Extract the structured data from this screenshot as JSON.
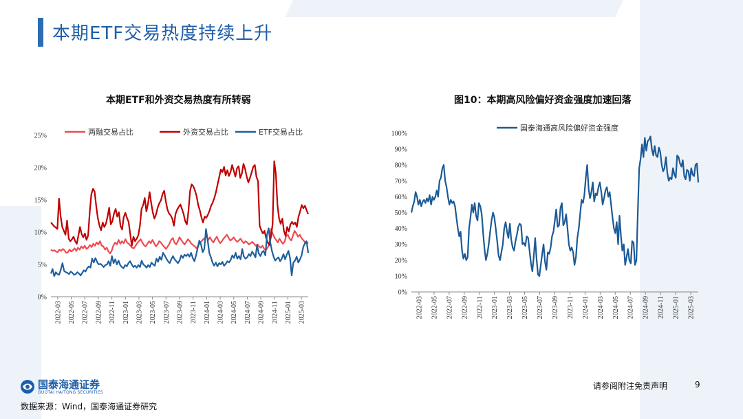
{
  "page": {
    "title": "本期ETF交易热度持续上升",
    "source": "数据来源：Wind，国泰海通证券研究",
    "disclaimer": "请参阅附注免责声明",
    "page_number": "9",
    "logo_cn": "国泰海通证券",
    "logo_en": "GUOTAI HAITONG SECURITIES"
  },
  "colors": {
    "header": "#1f5ea8",
    "series_margin": "#ef4a4f",
    "series_foreign": "#c00000",
    "series_etf": "#1f5f9e",
    "risk_appetite": "#1b5a96",
    "background_shape": "#eef3f9"
  },
  "chart_data": [
    {
      "type": "line",
      "title": "本期ETF和外资交易热度有所转弱",
      "legend_position": "top",
      "grid": false,
      "ylim": [
        0,
        25
      ],
      "y_ticks": [
        "0%",
        "5%",
        "10%",
        "15%",
        "20%",
        "25%"
      ],
      "x_ticks": [
        "2022-03",
        "2022-05",
        "2022-07",
        "2022-09",
        "2022-11",
        "2023-01",
        "2023-03",
        "2023-05",
        "2023-07",
        "2023-09",
        "2023-11",
        "2024-01",
        "2024-03",
        "2024-05",
        "2024-07",
        "2024-09",
        "2024-11",
        "2025-01",
        "2025-03"
      ],
      "series": [
        {
          "name": "两融交易占比",
          "color": "#ef4a4f",
          "values": [
            7.3,
            7.1,
            7.2,
            7.0,
            6.9,
            7.3,
            7.1,
            7.4,
            7.2,
            6.8,
            6.9,
            7.3,
            7.0,
            7.2,
            7.5,
            7.1,
            7.6,
            7.3,
            7.8,
            7.5,
            7.9,
            7.4,
            7.6,
            8.0,
            7.7,
            8.2,
            7.9,
            8.4,
            8.1,
            8.6,
            7.9,
            7.8,
            7.3,
            7.6,
            7.0,
            6.7,
            7.2,
            8.0,
            8.4,
            8.1,
            8.8,
            8.2,
            8.6,
            8.3,
            8.9,
            8.4,
            8.2,
            7.9,
            7.6,
            7.5,
            7.9,
            8.3,
            8.6,
            8.9,
            8.4,
            8.0,
            7.8,
            8.2,
            8.6,
            8.3,
            8.8,
            8.3,
            7.8,
            8.1,
            8.6,
            8.4,
            8.0,
            7.7,
            7.4,
            7.8,
            8.2,
            8.8,
            9.1,
            8.4,
            8.1,
            8.6,
            9.2,
            8.8,
            8.4,
            8.1,
            8.5,
            8.9,
            8.6,
            8.2,
            8.0,
            7.8,
            7.5,
            7.9,
            8.3,
            8.6,
            8.9,
            9.1,
            9.4,
            8.8,
            9.2,
            8.7,
            8.4,
            8.9,
            9.3,
            8.7,
            8.3,
            8.6,
            9.0,
            9.3,
            9.6,
            9.1,
            8.7,
            8.9,
            9.2,
            8.8,
            8.5,
            8.7,
            9.0,
            8.6,
            8.3,
            8.6,
            8.4,
            8.1,
            8.3,
            8.5,
            8.2,
            7.9,
            8.1,
            7.8,
            7.6,
            7.9,
            7.4,
            7.2,
            7.6,
            8.1,
            10.5,
            9.8,
            9.2,
            8.8,
            8.4,
            9.0,
            8.6,
            8.2,
            8.5,
            9.4,
            9.6,
            9.0,
            8.7,
            9.5,
            10.2,
            9.8,
            9.3,
            9.6,
            9.1,
            8.8,
            8.5,
            8.2,
            8.4
          ]
        },
        {
          "name": "外资交易占比",
          "color": "#c00000",
          "values": [
            11.5,
            11.2,
            10.9,
            10.7,
            10.5,
            15.2,
            12.5,
            10.8,
            10.2,
            9.6,
            11.8,
            9.0,
            8.6,
            8.9,
            9.3,
            8.6,
            8.2,
            9.5,
            10.8,
            9.7,
            9.2,
            9.8,
            8.8,
            9.5,
            13.2,
            15.9,
            16.7,
            16.3,
            14.0,
            12.2,
            11.0,
            10.3,
            11.5,
            10.8,
            11.3,
            12.4,
            13.8,
            11.2,
            11.7,
            12.9,
            13.6,
            12.4,
            13.1,
            11.0,
            10.4,
            12.3,
            13.0,
            12.2,
            11.6,
            9.7,
            7.9,
            9.3,
            8.6,
            9.0,
            9.5,
            11.0,
            13.6,
            14.2,
            15.3,
            13.2,
            14.4,
            16.2,
            14.5,
            13.0,
            12.1,
            12.8,
            13.8,
            14.5,
            14.9,
            15.9,
            16.4,
            14.8,
            13.5,
            12.9,
            12.6,
            12.1,
            11.0,
            12.8,
            13.5,
            13.9,
            14.3,
            13.6,
            12.8,
            11.7,
            11.2,
            13.2,
            16.4,
            17.4,
            17.1,
            16.5,
            15.6,
            14.2,
            13.4,
            12.3,
            11.5,
            12.4,
            12.2,
            12.7,
            13.3,
            14.1,
            14.6,
            15.3,
            16.2,
            17.4,
            18.5,
            19.7,
            19.3,
            20.1,
            18.8,
            19.6,
            18.7,
            19.3,
            20.4,
            19.5,
            18.6,
            19.9,
            20.2,
            18.4,
            19.1,
            20.6,
            19.8,
            18.6,
            17.7,
            18.4,
            19.2,
            20.1,
            20.4,
            18.6,
            17.9,
            11.0,
            10.3,
            9.8,
            10.2,
            9.1,
            8.4,
            8.0,
            9.3,
            11.3,
            21.0,
            19.0,
            14.2,
            12.1,
            11.3,
            12.1,
            10.2,
            9.4,
            10.8,
            10.1,
            11.2,
            11.6,
            11.2,
            11.5,
            10.8,
            12.4,
            13.2,
            14.2,
            13.7,
            14.1,
            13.4,
            12.8
          ]
        },
        {
          "name": "ETF交易占比",
          "color": "#1f5f9e",
          "values": [
            3.6,
            4.3,
            3.2,
            3.8,
            3.5,
            3.4,
            4.2,
            5.2,
            4.0,
            3.8,
            3.7,
            3.5,
            3.9,
            3.7,
            3.4,
            3.5,
            3.8,
            3.6,
            3.3,
            3.7,
            4.1,
            3.9,
            4.4,
            4.7,
            4.5,
            5.9,
            5.3,
            6.0,
            5.4,
            5.0,
            5.1,
            4.9,
            4.6,
            4.9,
            5.0,
            5.5,
            4.8,
            6.3,
            5.2,
            5.8,
            5.0,
            5.6,
            4.9,
            4.6,
            4.4,
            4.9,
            4.7,
            5.2,
            5.5,
            5.0,
            4.6,
            4.8,
            4.5,
            4.9,
            4.6,
            5.6,
            5.0,
            4.8,
            4.5,
            4.9,
            4.6,
            5.3,
            5.0,
            4.8,
            5.9,
            5.4,
            6.2,
            5.7,
            6.8,
            6.4,
            5.9,
            5.5,
            5.2,
            5.8,
            6.3,
            5.8,
            5.5,
            5.2,
            5.6,
            6.4,
            6.0,
            6.5,
            6.3,
            6.6,
            6.2,
            6.8,
            6.0,
            5.5,
            6.4,
            7.6,
            8.7,
            8.1,
            6.9,
            7.4,
            10.5,
            8.8,
            6.8,
            6.1,
            5.3,
            4.8,
            5.3,
            4.7,
            5.2,
            5.0,
            5.4,
            4.8,
            5.1,
            5.5,
            5.3,
            5.7,
            6.4,
            6.0,
            6.8,
            5.9,
            6.3,
            5.8,
            7.4,
            6.2,
            5.9,
            6.1,
            6.6,
            6.3,
            7.0,
            6.6,
            6.1,
            8.0,
            6.7,
            6.3,
            6.9,
            7.1,
            6.4,
            9.6,
            10.6,
            8.4,
            7.1,
            6.2,
            5.6,
            5.9,
            6.1,
            5.5,
            5.9,
            6.6,
            5.8,
            6.5,
            7.1,
            6.0,
            3.3,
            5.3,
            5.6,
            6.2,
            5.3,
            5.8,
            6.4,
            7.7,
            8.3,
            8.6,
            6.8
          ]
        }
      ]
    },
    {
      "type": "line",
      "title": "图10：本期高风险偏好资金强度加速回落",
      "legend_position": "top",
      "grid": false,
      "ylim": [
        0,
        100
      ],
      "y_ticks": [
        "0%",
        "10%",
        "20%",
        "30%",
        "40%",
        "50%",
        "60%",
        "70%",
        "80%",
        "90%",
        "100%"
      ],
      "x_ticks": [
        "2022-03",
        "2022-05",
        "2022-07",
        "2022-09",
        "2022-11",
        "2023-01",
        "2023-03",
        "2023-05",
        "2023-07",
        "2023-09",
        "2023-11",
        "2024-01",
        "2024-03",
        "2024-05",
        "2024-07",
        "2024-09",
        "2024-11",
        "2025-01",
        "2025-03"
      ],
      "series": [
        {
          "name": "国泰海通高风险偏好资金强度",
          "color": "#1b5a96",
          "values": [
            50,
            54,
            57,
            63,
            60,
            55,
            58,
            54,
            57,
            58,
            56,
            59,
            57,
            61,
            55,
            60,
            58,
            60,
            64,
            60,
            70,
            72,
            78,
            80,
            70,
            66,
            60,
            55,
            58,
            56,
            57,
            54,
            47,
            40,
            35,
            38,
            26,
            21,
            24,
            20,
            22,
            40,
            47,
            55,
            50,
            56,
            48,
            45,
            56,
            54,
            49,
            37,
            27,
            20,
            24,
            30,
            38,
            45,
            50,
            47,
            40,
            32,
            23,
            20,
            25,
            30,
            40,
            44,
            38,
            34,
            43,
            33,
            28,
            26,
            32,
            36,
            41,
            43,
            42,
            30,
            31,
            29,
            35,
            34,
            26,
            18,
            13,
            22,
            34,
            21,
            11,
            10,
            17,
            24,
            30,
            19,
            14,
            25,
            24,
            28,
            35,
            38,
            45,
            52,
            41,
            42,
            53,
            56,
            42,
            44,
            49,
            40,
            30,
            26,
            28,
            25,
            17,
            22,
            34,
            40,
            49,
            58,
            56,
            61,
            72,
            80,
            65,
            59,
            63,
            69,
            57,
            62,
            61,
            66,
            69,
            63,
            55,
            59,
            64,
            66,
            60,
            63,
            55,
            47,
            40,
            37,
            44,
            30,
            48,
            35,
            26,
            30,
            17,
            22,
            27,
            20,
            18,
            32,
            31,
            17,
            20,
            50,
            78,
            84,
            93,
            85,
            97,
            89,
            95,
            96,
            98,
            90,
            86,
            92,
            86,
            85,
            91,
            88,
            80,
            76,
            78,
            85,
            75,
            70,
            72,
            71,
            78,
            74,
            72,
            86,
            85,
            81,
            79,
            83,
            73,
            71,
            77,
            76,
            70,
            78,
            74,
            73,
            80,
            81,
            69
          ]
        }
      ]
    }
  ]
}
